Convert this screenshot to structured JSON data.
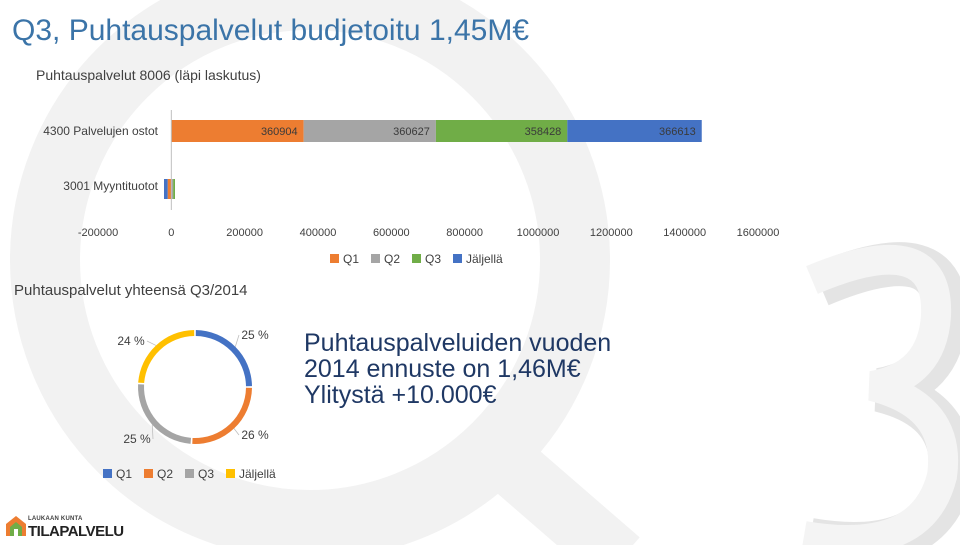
{
  "slide": {
    "title": "Q3, Puhtauspalvelut budjetoitu 1,45M€",
    "forecast_lines": [
      "Puhtauspalveluiden vuoden",
      "2014 ennuste on 1,46M€",
      "Ylitystä +10.000€"
    ],
    "logo_small": "LAUKAAN KUNTA",
    "logo_big": "TILAPALVELU"
  },
  "colors": {
    "Q1": "#ed7d31",
    "Q2": "#a5a5a5",
    "Q3": "#70ad47",
    "Jäljellä": "#4472c4",
    "title": "#3b74a8",
    "donut_Q4": "#ffc000"
  },
  "chart_data": [
    {
      "type": "bar",
      "orientation": "horizontal-stacked",
      "title": "Puhtauspalvelut 8006 (läpi laskutus)",
      "categories": [
        "4300 Palvelujen ostot",
        "3001 Myyntituotot"
      ],
      "series": [
        {
          "name": "Q1",
          "values": [
            360904,
            -10000
          ]
        },
        {
          "name": "Q2",
          "values": [
            360627,
            5000
          ]
        },
        {
          "name": "Q3",
          "values": [
            358428,
            5000
          ]
        },
        {
          "name": "Jäljellä",
          "values": [
            366613,
            -10000
          ]
        }
      ],
      "data_labels": [
        [
          "360904",
          "360627",
          "358428",
          "366613"
        ],
        [
          "",
          "",
          "",
          ""
        ]
      ],
      "xlim": [
        -200000,
        1600000
      ],
      "ticks": [
        "-200000",
        "0",
        "200000",
        "400000",
        "600000",
        "800000",
        "1000000",
        "1200000",
        "1400000",
        "1600000"
      ],
      "legend": "bottom",
      "grid": false
    },
    {
      "type": "pie",
      "variant": "doughnut",
      "title": "Puhtauspalvelut yhteensä Q3/2014",
      "series": [
        {
          "name": "Q1",
          "value": 25,
          "label": "25 %",
          "color": "#4472c4"
        },
        {
          "name": "Q2",
          "value": 26,
          "label": "26 %",
          "color": "#ed7d31"
        },
        {
          "name": "Q3",
          "value": 25,
          "label": "25 %",
          "color": "#a5a5a5"
        },
        {
          "name": "Jäljellä",
          "value": 24,
          "label": "24 %",
          "color": "#ffc000"
        }
      ],
      "legend": "bottom"
    }
  ]
}
